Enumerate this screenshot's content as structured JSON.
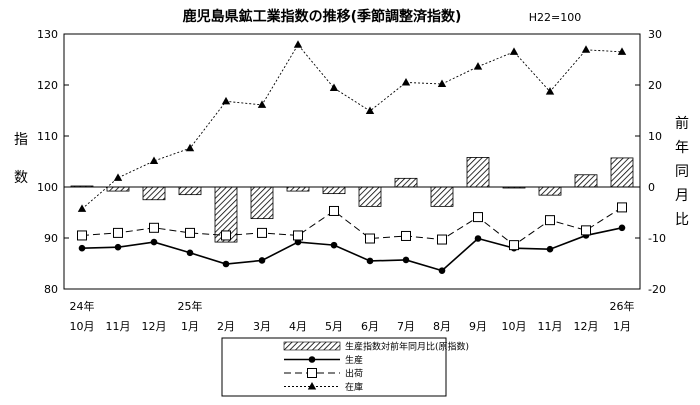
{
  "chart_data": {
    "type": "bar+line",
    "title": "鹿児島県鉱工業指数の推移(季節調整済指数)",
    "subtitle": "H22=100",
    "categories": [
      "10月",
      "11月",
      "12月",
      "1月",
      "2月",
      "3月",
      "4月",
      "5月",
      "6月",
      "7月",
      "8月",
      "9月",
      "10月",
      "11月",
      "12月",
      "1月"
    ],
    "year_labels": [
      {
        "index": 0,
        "label": "24年"
      },
      {
        "index": 3,
        "label": "25年"
      },
      {
        "index": 15,
        "label": "26年"
      }
    ],
    "left_axis": {
      "label_chars": [
        "指",
        "数"
      ],
      "ylim": [
        80,
        130
      ],
      "ticks": [
        80,
        90,
        100,
        110,
        120,
        130
      ]
    },
    "right_axis": {
      "label_chars": [
        "前",
        "年",
        "同",
        "月",
        "比"
      ],
      "ylim": [
        -20,
        30
      ],
      "ticks": [
        -20,
        -10,
        0,
        10,
        20,
        30
      ]
    },
    "series": [
      {
        "name": "生産指数対前年同月比(原指数)",
        "kind": "bar",
        "axis": "right",
        "values": [
          0.2,
          -0.8,
          -2.5,
          -1.5,
          -10.8,
          -6.2,
          -0.8,
          -1.3,
          -3.8,
          1.7,
          -3.8,
          5.8,
          -0.2,
          -1.6,
          2.4,
          5.7
        ]
      },
      {
        "name": "生産",
        "kind": "line",
        "marker": "filled-circle",
        "axis": "left",
        "values": [
          88.0,
          88.2,
          89.2,
          87.1,
          84.9,
          85.6,
          89.2,
          88.6,
          85.5,
          85.7,
          83.6,
          89.9,
          88.0,
          87.8,
          90.5,
          92.0
        ]
      },
      {
        "name": "出荷",
        "kind": "line",
        "marker": "open-square",
        "axis": "left",
        "values": [
          90.5,
          91.0,
          92.0,
          91.0,
          90.5,
          91.0,
          90.5,
          95.3,
          89.9,
          90.4,
          89.7,
          94.1,
          88.6,
          93.5,
          91.5,
          96.0
        ]
      },
      {
        "name": "在庫",
        "kind": "line",
        "marker": "filled-triangle",
        "axis": "right",
        "values": [
          -4.3,
          1.8,
          5.1,
          7.6,
          16.8,
          16.1,
          27.9,
          19.4,
          14.9,
          20.5,
          20.2,
          23.6,
          26.5,
          18.7,
          26.9,
          26.5
        ]
      }
    ],
    "legend_placement": "bottom-center",
    "grid": false
  }
}
